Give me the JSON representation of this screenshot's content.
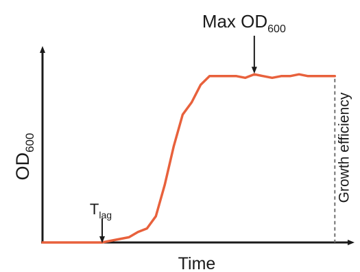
{
  "chart_data": {
    "type": "line",
    "title": "",
    "xlabel": "Time",
    "ylabel": {
      "main": "OD",
      "sub": "600"
    },
    "xlim": [
      0,
      100
    ],
    "ylim": [
      0,
      100
    ],
    "grid": false,
    "series": [
      {
        "color": "#e8613c",
        "points": [
          [
            0,
            0
          ],
          [
            8,
            0
          ],
          [
            14,
            0
          ],
          [
            20,
            0
          ],
          [
            23,
            1
          ],
          [
            26,
            2
          ],
          [
            29,
            3
          ],
          [
            32,
            6
          ],
          [
            35,
            8
          ],
          [
            38,
            15
          ],
          [
            41,
            33
          ],
          [
            44,
            55
          ],
          [
            47,
            73
          ],
          [
            50,
            80
          ],
          [
            53,
            90
          ],
          [
            56,
            95
          ],
          [
            59,
            95
          ],
          [
            62,
            95
          ],
          [
            65,
            95
          ],
          [
            68,
            94
          ],
          [
            71,
            96
          ],
          [
            74,
            95
          ],
          [
            77,
            94
          ],
          [
            80,
            95
          ],
          [
            83,
            95
          ],
          [
            86,
            96
          ],
          [
            89,
            95
          ],
          [
            92,
            95
          ],
          [
            95,
            95
          ],
          [
            98,
            95
          ]
        ]
      }
    ],
    "annotations": [
      {
        "id": "max",
        "label": "Max OD",
        "sub": "600",
        "x": 71,
        "y": 96
      },
      {
        "id": "tlag",
        "label": "T",
        "sub": "lag",
        "x": 20,
        "y": 0
      },
      {
        "id": "efficiency",
        "label": "Growth efficiency",
        "x": 98
      }
    ]
  }
}
